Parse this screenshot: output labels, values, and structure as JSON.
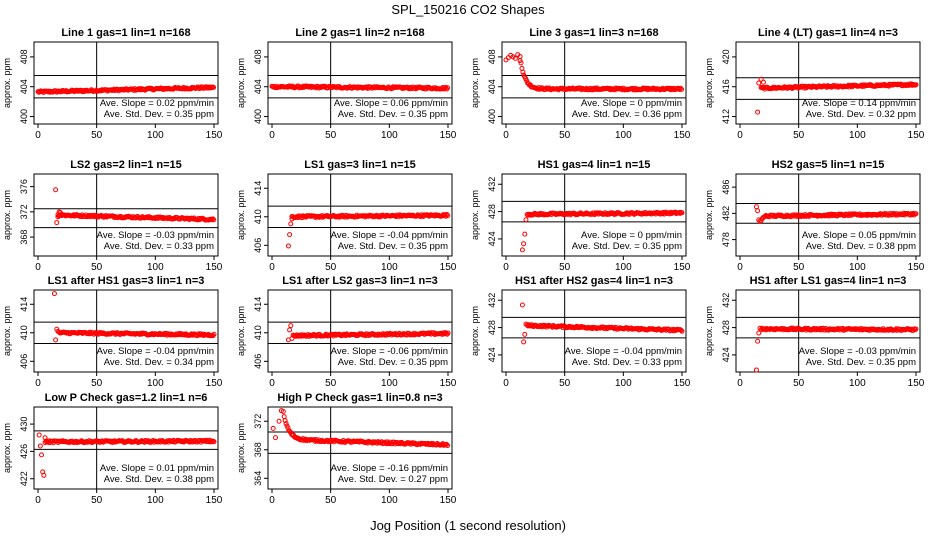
{
  "page": {
    "title": "SPL_150216  CO2 Shapes",
    "xlabel": "Jog Position (1 second resolution)",
    "ylabel": "approx. ppm",
    "slope_prefix": "Ave. Slope = ",
    "slope_unit": "ppm/min",
    "std_prefix": "Ave. Std. Dev. = ",
    "std_unit": "ppm"
  },
  "colors": {
    "points": "#ff0000",
    "axes": "#000000",
    "background": "#ffffff"
  },
  "chart_data": [
    {
      "type": "scatter",
      "title": "Line 1 gas=1 lin=1 n=168",
      "xlim": [
        0,
        150
      ],
      "xticks": [
        0,
        50,
        100,
        150
      ],
      "ylim": [
        399,
        410
      ],
      "yticks": [
        400,
        404,
        408
      ],
      "hlines": [
        402.5,
        405.5
      ],
      "vline": 50,
      "slope": "0.02",
      "std": "0.35",
      "series": [
        {
          "shape": "flat",
          "x": [
            0,
            150
          ],
          "y": [
            403.3,
            403.9
          ]
        }
      ]
    },
    {
      "type": "scatter",
      "title": "Line 2 gas=1 lin=2 n=168",
      "xlim": [
        0,
        150
      ],
      "xticks": [
        0,
        50,
        100,
        150
      ],
      "ylim": [
        399,
        410
      ],
      "yticks": [
        400,
        404,
        408
      ],
      "hlines": [
        402.5,
        405.5
      ],
      "vline": 50,
      "slope": "0.06",
      "std": "0.35",
      "series": [
        {
          "shape": "flat",
          "x": [
            0,
            150
          ],
          "y": [
            404.0,
            403.8
          ]
        }
      ]
    },
    {
      "type": "scatter",
      "title": "Line 3 gas=1 lin=3 n=168",
      "xlim": [
        0,
        150
      ],
      "xticks": [
        0,
        50,
        100,
        150
      ],
      "ylim": [
        399,
        410
      ],
      "yticks": [
        400,
        404,
        408
      ],
      "hlines": [
        402.5,
        405.5
      ],
      "vline": 50,
      "slope": "0",
      "std": "0.36",
      "series": [
        {
          "shape": "decay",
          "x": [
            0,
            150
          ],
          "y": [
            403.7,
            403.7
          ],
          "start": 408.0,
          "start_x": 12,
          "tau": 4
        },
        {
          "shape": "points",
          "x": [
            0,
            2,
            4,
            6,
            8,
            10,
            12
          ],
          "y": [
            407.6,
            407.9,
            408.2,
            408.0,
            407.8,
            408.3,
            407.5
          ]
        }
      ]
    },
    {
      "type": "scatter",
      "title": "Line 4 (LT) gas=1 lin=4 n=3",
      "xlim": [
        0,
        150
      ],
      "xticks": [
        0,
        50,
        100,
        150
      ],
      "ylim": [
        411,
        422
      ],
      "yticks": [
        412,
        416,
        420
      ],
      "hlines": [
        414.3,
        417.2
      ],
      "vline": 50,
      "slope": "0.14",
      "std": "0.32",
      "series": [
        {
          "shape": "flat",
          "x": [
            18,
            150
          ],
          "y": [
            415.8,
            416.3
          ]
        },
        {
          "shape": "points",
          "x": [
            15,
            16,
            18,
            20
          ],
          "y": [
            412.6,
            416.5,
            417.0,
            416.6
          ]
        }
      ]
    },
    {
      "type": "scatter",
      "title": "LS2 gas=2 lin=1 n=15",
      "xlim": [
        0,
        150
      ],
      "xticks": [
        0,
        50,
        100,
        150
      ],
      "ylim": [
        365,
        378
      ],
      "yticks": [
        368,
        372,
        376
      ],
      "hlines": [
        369.5,
        372.5
      ],
      "vline": 50,
      "slope": "-0.03",
      "std": "0.33",
      "series": [
        {
          "shape": "flat",
          "x": [
            17,
            150
          ],
          "y": [
            371.5,
            370.8
          ]
        },
        {
          "shape": "points",
          "x": [
            15,
            16,
            17,
            18,
            19,
            20
          ],
          "y": [
            375.5,
            370.3,
            371.2,
            372.0,
            371.9,
            371.6
          ]
        }
      ]
    },
    {
      "type": "scatter",
      "title": "LS1 gas=3 lin=1 n=15",
      "xlim": [
        0,
        150
      ],
      "xticks": [
        0,
        50,
        100,
        150
      ],
      "ylim": [
        404.5,
        416
      ],
      "yticks": [
        406,
        410,
        414
      ],
      "hlines": [
        408.5,
        411.5
      ],
      "vline": 50,
      "slope": "-0.04",
      "std": "0.35",
      "series": [
        {
          "shape": "flat",
          "x": [
            17,
            150
          ],
          "y": [
            410.0,
            410.2
          ]
        },
        {
          "shape": "points",
          "x": [
            14,
            15,
            16,
            17
          ],
          "y": [
            405.9,
            407.5,
            409.0,
            409.7
          ]
        }
      ]
    },
    {
      "type": "scatter",
      "title": "HS1 gas=4 lin=1 n=15",
      "xlim": [
        0,
        150
      ],
      "xticks": [
        0,
        50,
        100,
        150
      ],
      "ylim": [
        421.5,
        433.5
      ],
      "yticks": [
        424,
        428,
        432
      ],
      "hlines": [
        426.5,
        429.5
      ],
      "vline": 50,
      "slope": "0",
      "std": "0.35",
      "series": [
        {
          "shape": "flat",
          "x": [
            18,
            150
          ],
          "y": [
            427.6,
            427.8
          ]
        },
        {
          "shape": "points",
          "x": [
            14,
            15,
            16,
            17
          ],
          "y": [
            422.4,
            423.3,
            424.7,
            426.8
          ]
        }
      ]
    },
    {
      "type": "scatter",
      "title": "HS2 gas=5 lin=1 n=15",
      "xlim": [
        0,
        150
      ],
      "xticks": [
        0,
        50,
        100,
        150
      ],
      "ylim": [
        475.5,
        488
      ],
      "yticks": [
        478,
        482,
        486
      ],
      "hlines": [
        480.5,
        483.5
      ],
      "vline": 50,
      "slope": "0.05",
      "std": "0.38",
      "series": [
        {
          "shape": "flat",
          "x": [
            22,
            150
          ],
          "y": [
            481.6,
            481.9
          ]
        },
        {
          "shape": "points",
          "x": [
            14,
            15,
            16,
            17,
            18,
            19,
            20,
            21
          ],
          "y": [
            483.0,
            482.4,
            481.0,
            480.8,
            480.9,
            481.2,
            481.4,
            481.5
          ]
        }
      ]
    },
    {
      "type": "scatter",
      "title": "LS1 after HS1 gas=3 lin=1 n=3",
      "xlim": [
        0,
        150
      ],
      "xticks": [
        0,
        50,
        100,
        150
      ],
      "ylim": [
        404.5,
        416
      ],
      "yticks": [
        406,
        410,
        414
      ],
      "hlines": [
        408.5,
        411.5
      ],
      "vline": 50,
      "slope": "-0.04",
      "std": "0.34",
      "series": [
        {
          "shape": "flat",
          "x": [
            18,
            150
          ],
          "y": [
            410.0,
            409.7
          ]
        },
        {
          "shape": "points",
          "x": [
            14,
            15,
            16,
            17
          ],
          "y": [
            415.5,
            409.0,
            410.5,
            410.2
          ]
        }
      ]
    },
    {
      "type": "scatter",
      "title": "LS1 after LS2 gas=3 lin=1 n=3",
      "xlim": [
        0,
        150
      ],
      "xticks": [
        0,
        50,
        100,
        150
      ],
      "ylim": [
        404.5,
        416
      ],
      "yticks": [
        406,
        410,
        414
      ],
      "hlines": [
        408.5,
        411.5
      ],
      "vline": 50,
      "slope": "-0.06",
      "std": "0.35",
      "series": [
        {
          "shape": "flat",
          "x": [
            18,
            150
          ],
          "y": [
            409.6,
            409.9
          ]
        },
        {
          "shape": "points",
          "x": [
            14,
            15,
            16,
            17
          ],
          "y": [
            409.0,
            410.4,
            411.0,
            409.2
          ]
        }
      ]
    },
    {
      "type": "scatter",
      "title": "HS1 after HS2 gas=4 lin=1 n=3",
      "xlim": [
        0,
        150
      ],
      "xticks": [
        0,
        50,
        100,
        150
      ],
      "ylim": [
        421.5,
        433.5
      ],
      "yticks": [
        424,
        428,
        432
      ],
      "hlines": [
        426.5,
        429.5
      ],
      "vline": 50,
      "slope": "-0.04",
      "std": "0.33",
      "series": [
        {
          "shape": "flat",
          "x": [
            18,
            150
          ],
          "y": [
            428.3,
            427.6
          ]
        },
        {
          "shape": "points",
          "x": [
            14,
            15,
            16,
            17
          ],
          "y": [
            431.3,
            425.9,
            427.0,
            428.5
          ]
        }
      ]
    },
    {
      "type": "scatter",
      "title": "HS1 after LS1 gas=4 lin=1 n=3",
      "xlim": [
        0,
        150
      ],
      "xticks": [
        0,
        50,
        100,
        150
      ],
      "ylim": [
        421.5,
        433.5
      ],
      "yticks": [
        424,
        428,
        432
      ],
      "hlines": [
        426.5,
        429.5
      ],
      "vline": 50,
      "slope": "-0.03",
      "std": "0.35",
      "series": [
        {
          "shape": "flat",
          "x": [
            18,
            150
          ],
          "y": [
            427.8,
            427.7
          ]
        },
        {
          "shape": "points",
          "x": [
            14,
            15,
            16,
            17
          ],
          "y": [
            421.8,
            426.0,
            427.2,
            427.9
          ]
        }
      ]
    },
    {
      "type": "scatter",
      "title": "Low P Check gas=1.2 lin=1 n=6",
      "xlim": [
        0,
        150
      ],
      "xticks": [
        0,
        50,
        100,
        150
      ],
      "ylim": [
        420.5,
        432.5
      ],
      "yticks": [
        422,
        426,
        430
      ],
      "hlines": [
        426.3,
        429.0
      ],
      "vline": 50,
      "slope": "0.01",
      "std": "0.38",
      "series": [
        {
          "shape": "flat",
          "x": [
            6,
            150
          ],
          "y": [
            427.4,
            427.5
          ]
        },
        {
          "shape": "points",
          "x": [
            1,
            2,
            3,
            4,
            5,
            6
          ],
          "y": [
            428.4,
            426.8,
            425.5,
            423.0,
            422.5,
            428.0
          ]
        }
      ]
    },
    {
      "type": "scatter",
      "title": "High P Check gas=1 lin=0.8 n=3",
      "xlim": [
        0,
        150
      ],
      "xticks": [
        0,
        50,
        100,
        150
      ],
      "ylim": [
        362.5,
        374
      ],
      "yticks": [
        364,
        368,
        372
      ],
      "hlines": [
        367.5,
        370.5
      ],
      "vline": 50,
      "slope": "-0.16",
      "std": "0.27",
      "series": [
        {
          "shape": "decay",
          "x": [
            0,
            150
          ],
          "y": [
            369.5,
            368.7
          ],
          "start": 373.8,
          "start_x": 9,
          "tau": 4.5
        },
        {
          "shape": "points",
          "x": [
            1,
            3,
            6,
            8
          ],
          "y": [
            371.0,
            369.7,
            372.0,
            373.5
          ]
        }
      ]
    }
  ]
}
